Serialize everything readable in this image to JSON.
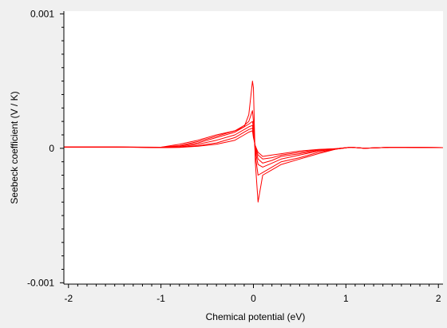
{
  "chart_data": {
    "type": "line",
    "title": "",
    "xlabel": "Chemical potential (eV)",
    "ylabel": "Seebeck coefficient (V / K)",
    "xlim": [
      -2.05,
      2.05
    ],
    "ylim": [
      -0.00101,
      0.00102
    ],
    "x_ticks": [
      {
        "value": -2,
        "label": "-2"
      },
      {
        "value": -1,
        "label": "-1"
      },
      {
        "value": 0,
        "label": "0"
      },
      {
        "value": 1,
        "label": "1"
      },
      {
        "value": 2,
        "label": "2"
      }
    ],
    "y_ticks": [
      {
        "value": 0.001,
        "label": "0.001"
      },
      {
        "value": 0,
        "label": "0"
      },
      {
        "value": -0.001,
        "label": "-0.001"
      }
    ],
    "grid": false,
    "legend": "none",
    "colors": {
      "line": "#ff0000",
      "background": "#f0f0f0",
      "plot_area": "#ffffff",
      "axis": "#000000"
    },
    "series": [
      {
        "x": [
          -2.05,
          -1.5,
          -1.0,
          -0.8,
          -0.6,
          -0.4,
          -0.2,
          -0.1,
          -0.05,
          -0.01,
          0.0,
          0.02,
          0.05,
          0.1,
          0.2,
          0.3,
          0.5,
          0.7,
          0.9,
          1.05,
          1.2,
          1.5,
          2.05
        ],
        "y": [
          1e-05,
          1e-05,
          8e-06,
          3e-05,
          6e-05,
          0.0001,
          0.00013,
          0.00016,
          0.00025,
          0.0005,
          0.00045,
          -0.0001,
          -0.0004,
          -0.0002,
          -0.00016,
          -0.00012,
          -8e-05,
          -4e-05,
          -5e-06,
          8e-06,
          0.0,
          8e-06,
          5e-06
        ]
      },
      {
        "x": [
          -2.05,
          -1.5,
          -1.0,
          -0.8,
          -0.6,
          -0.4,
          -0.2,
          -0.1,
          -0.05,
          -0.01,
          0.0,
          0.02,
          0.05,
          0.1,
          0.2,
          0.3,
          0.5,
          0.7,
          0.9,
          1.05,
          1.2,
          1.5,
          2.05
        ],
        "y": [
          1e-05,
          1e-05,
          8e-06,
          2e-05,
          5e-05,
          9e-05,
          0.00013,
          0.00017,
          0.0002,
          0.00028,
          0.0002,
          -5e-05,
          -0.0002,
          -0.00018,
          -0.00014,
          -0.0001,
          -7e-05,
          -3e-05,
          -5e-06,
          8e-06,
          0.0,
          8e-06,
          5e-06
        ]
      },
      {
        "x": [
          -2.05,
          -1.5,
          -1.0,
          -0.8,
          -0.6,
          -0.4,
          -0.2,
          -0.1,
          -0.05,
          -0.01,
          0.0,
          0.02,
          0.05,
          0.1,
          0.2,
          0.3,
          0.5,
          0.7,
          0.9,
          1.05,
          1.2,
          1.5,
          2.05
        ],
        "y": [
          1e-05,
          1e-05,
          7e-06,
          1.5e-05,
          4e-05,
          8e-05,
          0.00012,
          0.00016,
          0.00018,
          0.0002,
          0.00015,
          -2e-05,
          -0.00012,
          -0.00014,
          -0.00011,
          -8e-05,
          -5e-05,
          -2e-05,
          -5e-06,
          8e-06,
          0.0,
          8e-06,
          5e-06
        ]
      },
      {
        "x": [
          -2.05,
          -1.5,
          -1.0,
          -0.8,
          -0.6,
          -0.4,
          -0.2,
          -0.1,
          -0.05,
          -0.01,
          0.0,
          0.02,
          0.05,
          0.1,
          0.2,
          0.3,
          0.5,
          0.7,
          0.9,
          1.05,
          1.2,
          1.5,
          2.05
        ],
        "y": [
          1e-05,
          1e-05,
          6e-06,
          1e-05,
          3e-05,
          6e-05,
          0.0001,
          0.00014,
          0.00016,
          0.00017,
          0.00012,
          0.0,
          -8e-05,
          -0.00011,
          -9e-05,
          -6e-05,
          -4e-05,
          -1.5e-05,
          -3e-06,
          8e-06,
          0.0,
          8e-06,
          5e-06
        ]
      },
      {
        "x": [
          -2.05,
          -1.5,
          -1.0,
          -0.8,
          -0.6,
          -0.4,
          -0.2,
          -0.1,
          -0.05,
          -0.01,
          0.0,
          0.02,
          0.05,
          0.1,
          0.2,
          0.3,
          0.5,
          0.7,
          0.9,
          1.05,
          1.2,
          1.5,
          2.05
        ],
        "y": [
          1e-05,
          1e-05,
          5e-06,
          8e-06,
          2e-05,
          4e-05,
          8e-05,
          0.00012,
          0.00014,
          0.00015,
          0.0001,
          1e-05,
          -5e-05,
          -8e-05,
          -7e-05,
          -5e-05,
          -3e-05,
          -1e-05,
          -2e-06,
          8e-06,
          0.0,
          8e-06,
          5e-06
        ]
      },
      {
        "x": [
          -2.05,
          -1.5,
          -1.0,
          -0.8,
          -0.6,
          -0.4,
          -0.2,
          -0.1,
          -0.05,
          -0.01,
          0.0,
          0.02,
          0.05,
          0.1,
          0.2,
          0.3,
          0.5,
          0.7,
          0.9,
          1.05,
          1.2,
          1.5,
          2.05
        ],
        "y": [
          1e-05,
          1e-05,
          5e-06,
          6e-06,
          1.5e-05,
          3e-05,
          6e-05,
          0.0001,
          0.00012,
          0.00013,
          8e-05,
          2e-05,
          -3e-05,
          -6e-05,
          -5e-05,
          -4e-05,
          -2e-05,
          -8e-06,
          -2e-06,
          8e-06,
          0.0,
          8e-06,
          5e-06
        ]
      }
    ]
  }
}
